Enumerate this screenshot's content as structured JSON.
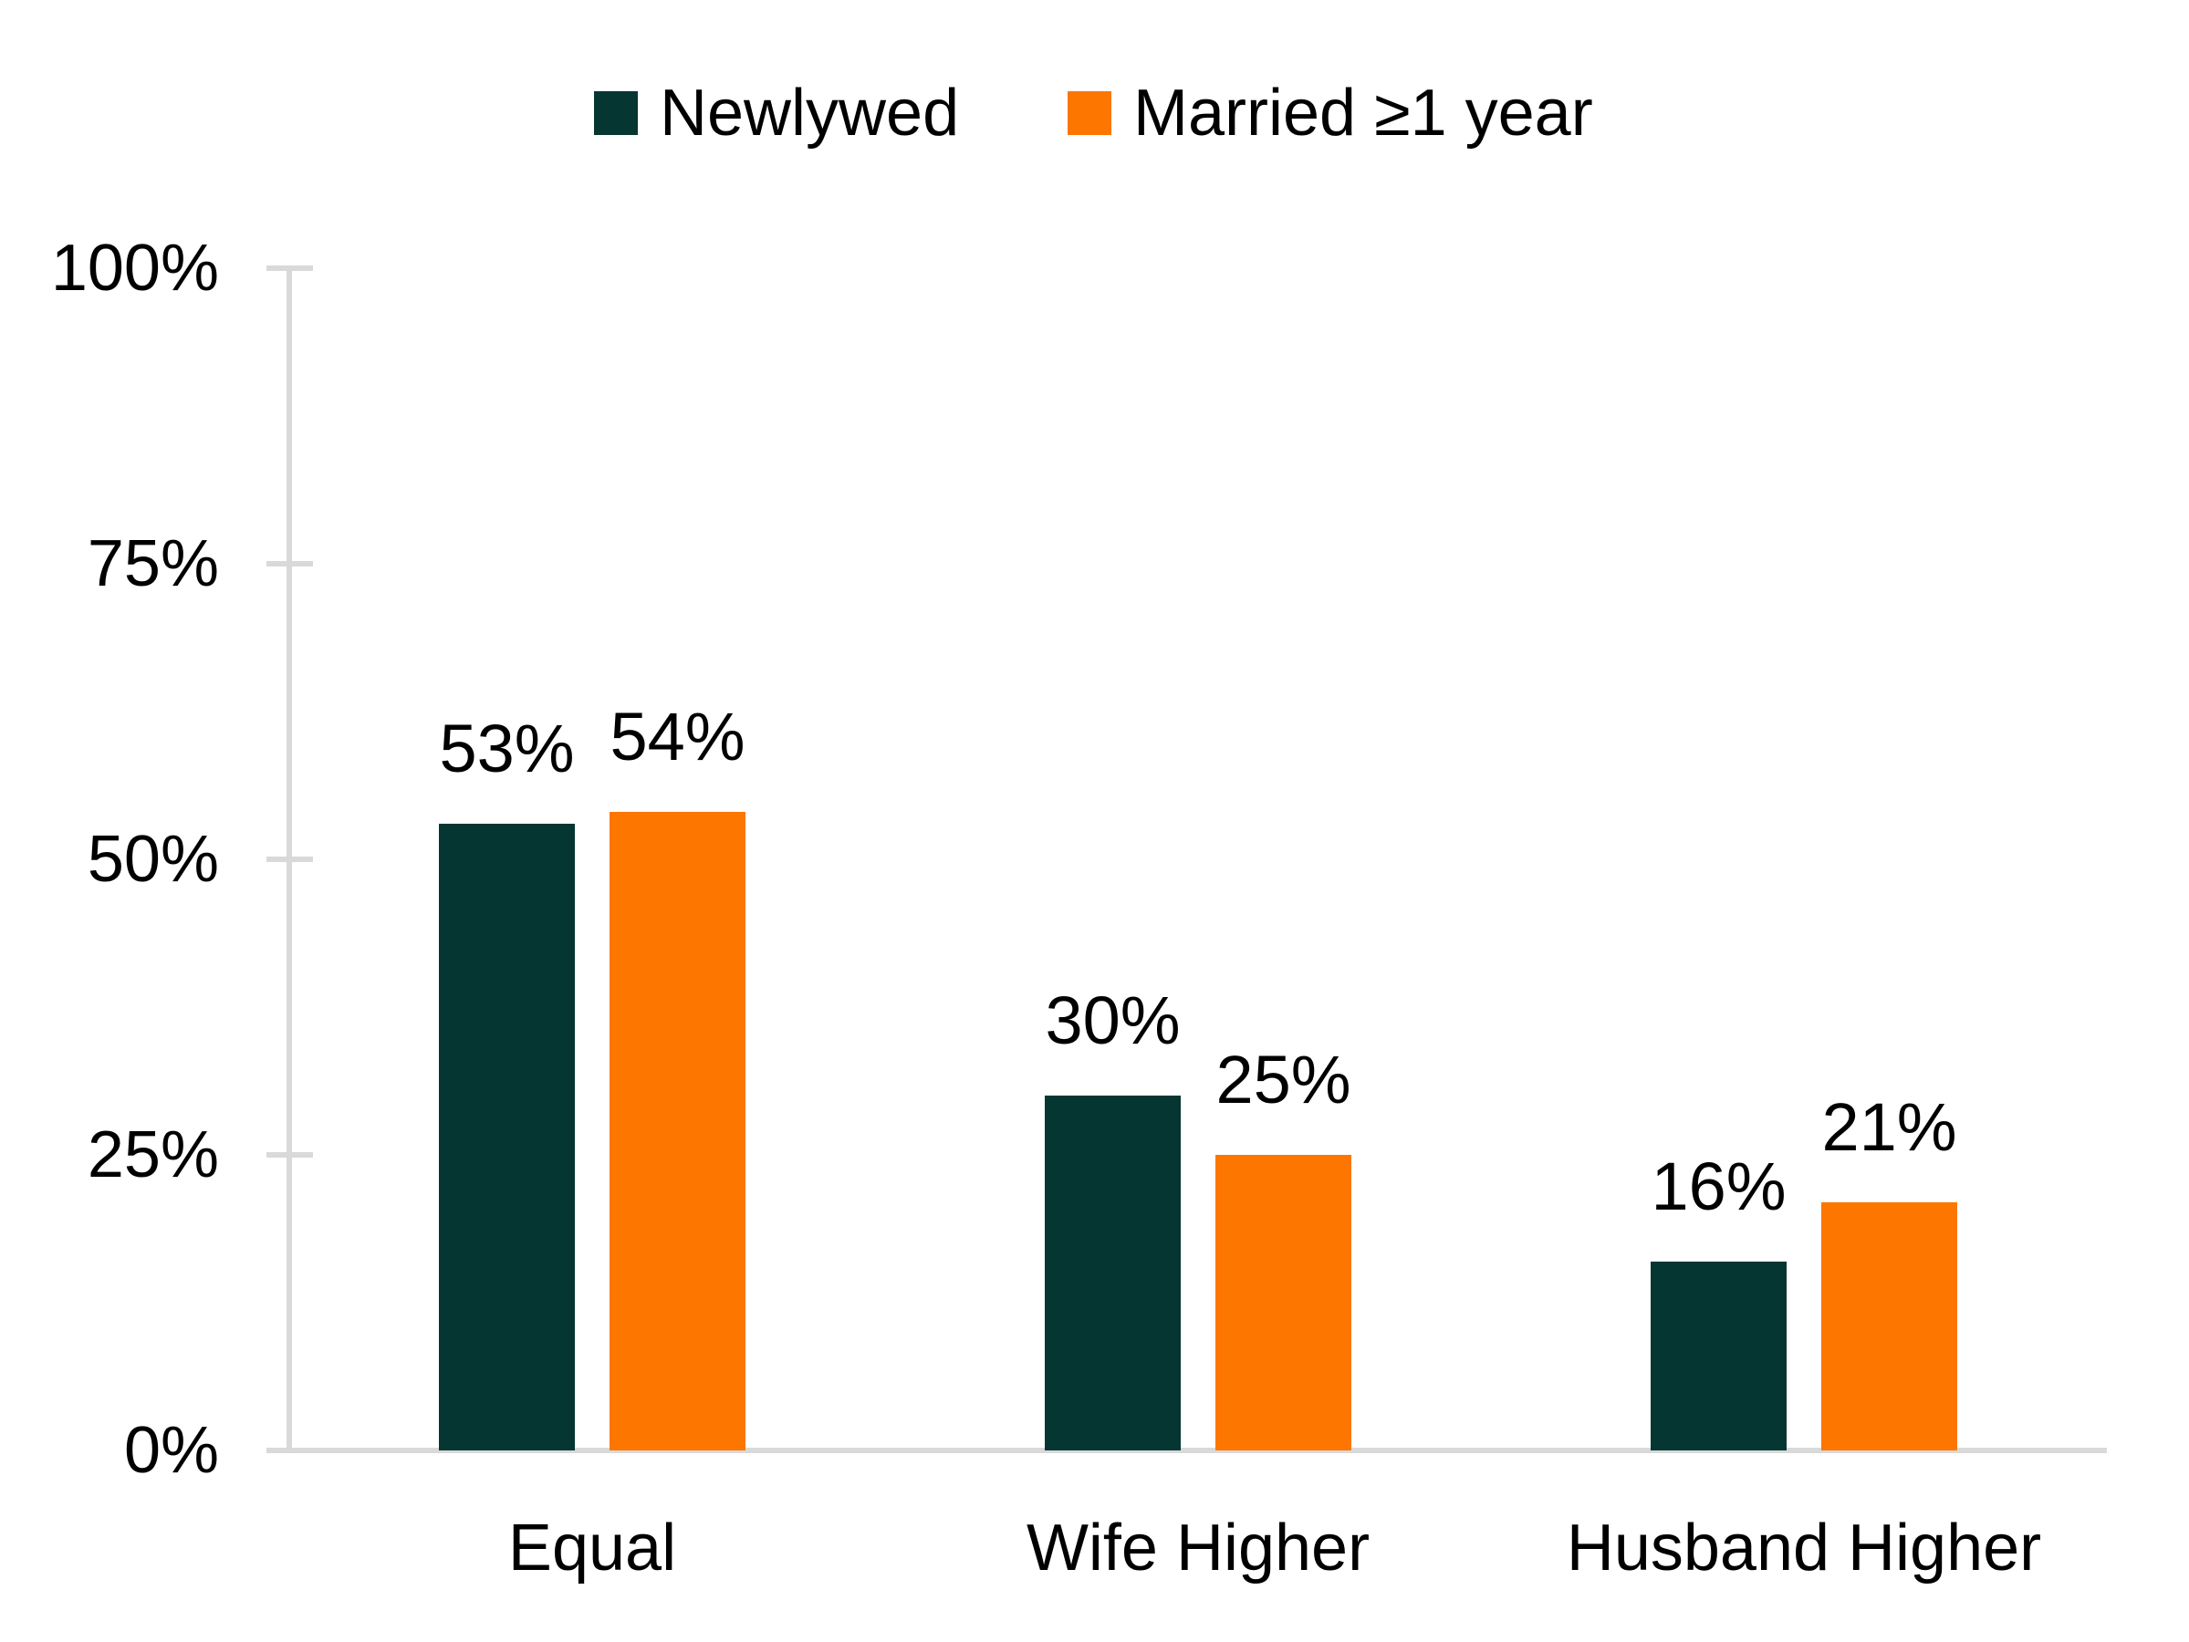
{
  "chart_data": {
    "type": "bar",
    "title": "",
    "categories": [
      "Equal",
      "Wife Higher",
      "Husband Higher"
    ],
    "series": [
      {
        "name": "Newlywed",
        "color": "#063632",
        "values": [
          53,
          30,
          16
        ],
        "value_labels": [
          "53%",
          "30%",
          "16%"
        ]
      },
      {
        "name": "Married ≥1 year",
        "color": "#FC7600",
        "values": [
          54,
          25,
          21
        ],
        "value_labels": [
          "54%",
          "25%",
          "21%"
        ]
      }
    ],
    "y_axis": {
      "tick_labels": [
        "0%",
        "25%",
        "50%",
        "75%",
        "100%"
      ],
      "tick_values": [
        0,
        25,
        50,
        75,
        100
      ],
      "min": 0,
      "max": 100
    },
    "xlabel": "",
    "ylabel": "",
    "legend_position": "top",
    "grid": false,
    "axis_color": "#D9D9D9",
    "text_color": "#000000"
  }
}
